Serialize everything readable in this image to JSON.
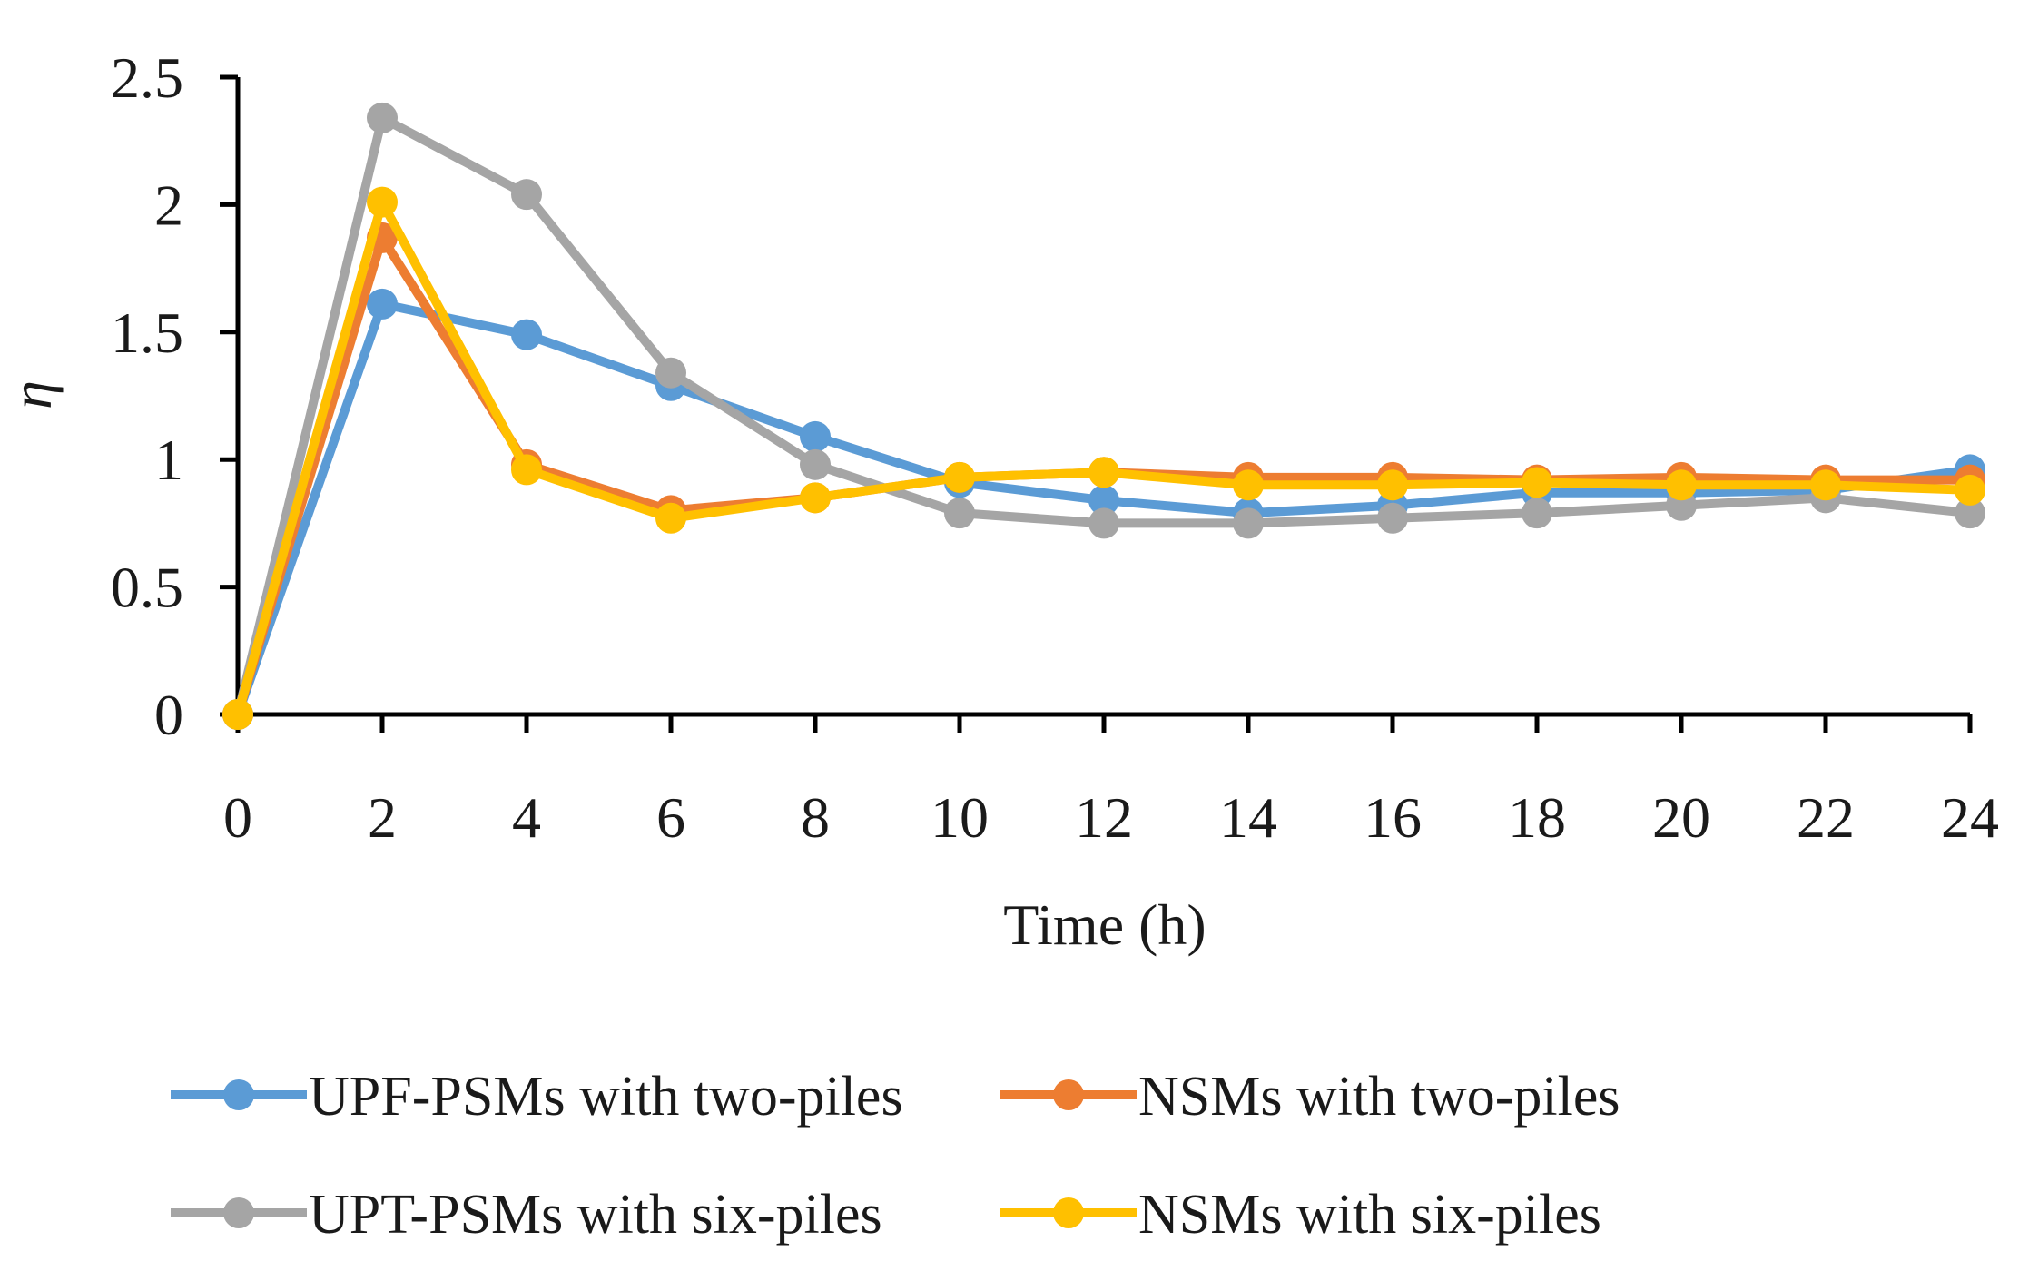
{
  "chart_data": {
    "type": "line",
    "title": "",
    "xlabel": "Time (h)",
    "ylabel": "η",
    "x": [
      0,
      2,
      4,
      6,
      8,
      10,
      12,
      14,
      16,
      18,
      20,
      22,
      24
    ],
    "xlim": [
      0,
      24
    ],
    "ylim": [
      0,
      2.5
    ],
    "xticks": [
      "0",
      "2",
      "4",
      "6",
      "8",
      "10",
      "12",
      "14",
      "16",
      "18",
      "20",
      "22",
      "24"
    ],
    "yticks": [
      "0",
      "0.5",
      "1",
      "1.5",
      "2",
      "2.5"
    ],
    "grid": false,
    "legend_position": "bottom",
    "series": [
      {
        "name": "UPF-PSMs with two-piles",
        "color": "#5b9bd5",
        "values": [
          0,
          1.61,
          1.49,
          1.29,
          1.09,
          0.91,
          0.84,
          0.79,
          0.82,
          0.87,
          0.87,
          0.88,
          0.96
        ]
      },
      {
        "name": "NSMs with two-piles",
        "color": "#ed7d31",
        "values": [
          0,
          1.87,
          0.98,
          0.8,
          0.85,
          0.93,
          0.95,
          0.93,
          0.93,
          0.92,
          0.93,
          0.92,
          0.92
        ]
      },
      {
        "name": "UPT-PSMs with six-piles",
        "color": "#a5a5a5",
        "values": [
          0,
          2.34,
          2.04,
          1.34,
          0.98,
          0.79,
          0.75,
          0.75,
          0.77,
          0.79,
          0.82,
          0.85,
          0.79
        ]
      },
      {
        "name": "NSMs with six-piles",
        "color": "#ffc000",
        "values": [
          0,
          2.01,
          0.96,
          0.77,
          0.85,
          0.93,
          0.95,
          0.9,
          0.9,
          0.91,
          0.9,
          0.9,
          0.88
        ]
      }
    ]
  }
}
